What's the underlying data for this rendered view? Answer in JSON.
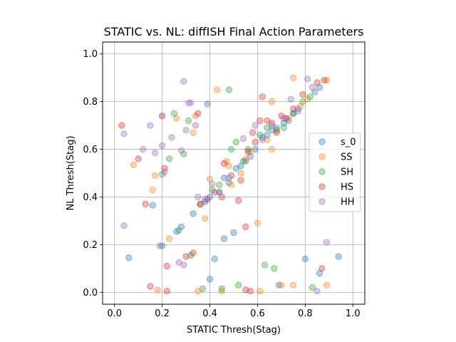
{
  "chart_data": {
    "type": "scatter",
    "title": "STATIC vs. NL: diffISH Final Action Parameters",
    "xlabel": "STATIC Thresh(Stag)",
    "ylabel": "NL Thresh(Stag)",
    "xlim": [
      -0.05,
      1.05
    ],
    "ylim": [
      -0.05,
      1.05
    ],
    "xticks": [
      "0.0",
      "0.2",
      "0.4",
      "0.6",
      "0.8",
      "1.0"
    ],
    "yticks": [
      "0.0",
      "0.2",
      "0.4",
      "0.6",
      "0.8",
      "1.0"
    ],
    "grid": true,
    "legend_position": "center-right",
    "series": [
      {
        "name": "s_0",
        "color": "#1f77b4",
        "points": [
          [
            0.06,
            0.145
          ],
          [
            0.16,
            0.365
          ],
          [
            0.2,
            0.195
          ],
          [
            0.26,
            0.255
          ],
          [
            0.28,
            0.275
          ],
          [
            0.33,
            0.33
          ],
          [
            0.38,
            0.38
          ],
          [
            0.39,
            0.79
          ],
          [
            0.4,
            0.4
          ],
          [
            0.4,
            0.055
          ],
          [
            0.42,
            0.14
          ],
          [
            0.44,
            0.42
          ],
          [
            0.46,
            0.48
          ],
          [
            0.46,
            0.225
          ],
          [
            0.48,
            0.46
          ],
          [
            0.5,
            0.25
          ],
          [
            0.51,
            0.52
          ],
          [
            0.53,
            0.53
          ],
          [
            0.55,
            0.55
          ],
          [
            0.57,
            0.57
          ],
          [
            0.59,
            0.6
          ],
          [
            0.62,
            0.65
          ],
          [
            0.64,
            0.66
          ],
          [
            0.66,
            0.68
          ],
          [
            0.68,
            0.69
          ],
          [
            0.69,
            0.03
          ],
          [
            0.71,
            0.71
          ],
          [
            0.73,
            0.72
          ],
          [
            0.75,
            0.75
          ],
          [
            0.77,
            0.77
          ],
          [
            0.8,
            0.14
          ],
          [
            0.84,
            0.84
          ],
          [
            0.86,
            0.08
          ],
          [
            0.86,
            0.86
          ],
          [
            0.94,
            0.15
          ]
        ]
      },
      {
        "name": "SS",
        "color": "#ff7f0e",
        "points": [
          [
            0.08,
            0.535
          ],
          [
            0.16,
            0.43
          ],
          [
            0.17,
            0.49
          ],
          [
            0.18,
            0.01
          ],
          [
            0.2,
            0.74
          ],
          [
            0.23,
            0.225
          ],
          [
            0.26,
            0.73
          ],
          [
            0.33,
            0.67
          ],
          [
            0.34,
            0.74
          ],
          [
            0.35,
            0.005
          ],
          [
            0.38,
            0.31
          ],
          [
            0.4,
            0.475
          ],
          [
            0.43,
            0.85
          ],
          [
            0.45,
            0.005
          ],
          [
            0.47,
            0.55
          ],
          [
            0.48,
            0.53
          ],
          [
            0.49,
            0.45
          ],
          [
            0.53,
            0.5
          ],
          [
            0.55,
            0.56
          ],
          [
            0.57,
            0.59
          ],
          [
            0.6,
            0.29
          ],
          [
            0.61,
            0.005
          ],
          [
            0.64,
            0.64
          ],
          [
            0.66,
            0.6
          ],
          [
            0.66,
            0.8
          ],
          [
            0.7,
            0.03
          ],
          [
            0.73,
            0.73
          ],
          [
            0.75,
            0.9
          ],
          [
            0.75,
            0.03
          ],
          [
            0.78,
            0.78
          ],
          [
            0.81,
            0.81
          ],
          [
            0.89,
            0.03
          ],
          [
            0.89,
            0.89
          ]
        ]
      },
      {
        "name": "SH",
        "color": "#2ca02c",
        "points": [
          [
            0.2,
            0.495
          ],
          [
            0.23,
            0.56
          ],
          [
            0.25,
            0.75
          ],
          [
            0.27,
            0.26
          ],
          [
            0.29,
            0.58
          ],
          [
            0.31,
            0.72
          ],
          [
            0.32,
            0.155
          ],
          [
            0.36,
            0.37
          ],
          [
            0.37,
            0.015
          ],
          [
            0.41,
            0.43
          ],
          [
            0.44,
            0.45
          ],
          [
            0.45,
            0.015
          ],
          [
            0.48,
            0.85
          ],
          [
            0.49,
            0.6
          ],
          [
            0.51,
            0.63
          ],
          [
            0.52,
            0.03
          ],
          [
            0.54,
            0.55
          ],
          [
            0.56,
            0.6
          ],
          [
            0.61,
            0.66
          ],
          [
            0.63,
            0.115
          ],
          [
            0.64,
            0.69
          ],
          [
            0.67,
            0.1
          ],
          [
            0.68,
            0.68
          ],
          [
            0.71,
            0.69
          ],
          [
            0.75,
            0.75
          ],
          [
            0.79,
            0.8
          ],
          [
            0.82,
            0.82
          ],
          [
            0.83,
            0.02
          ]
        ]
      },
      {
        "name": "HS",
        "color": "#d62728",
        "points": [
          [
            0.03,
            0.7
          ],
          [
            0.1,
            0.56
          ],
          [
            0.13,
            0.37
          ],
          [
            0.15,
            0.025
          ],
          [
            0.21,
            0.52
          ],
          [
            0.22,
            0.005
          ],
          [
            0.22,
            0.11
          ],
          [
            0.3,
            0.15
          ],
          [
            0.33,
            0.165
          ],
          [
            0.35,
            0.75
          ],
          [
            0.36,
            0.37
          ],
          [
            0.39,
            0.39
          ],
          [
            0.42,
            0.42
          ],
          [
            0.45,
            0.4
          ],
          [
            0.46,
            0.54
          ],
          [
            0.49,
            0.49
          ],
          [
            0.52,
            0.385
          ],
          [
            0.53,
            0.47
          ],
          [
            0.55,
            0.01
          ],
          [
            0.55,
            0.275
          ],
          [
            0.56,
            0.59
          ],
          [
            0.57,
            0.005
          ],
          [
            0.58,
            0.67
          ],
          [
            0.59,
            0.63
          ],
          [
            0.61,
            0.72
          ],
          [
            0.62,
            0.82
          ],
          [
            0.64,
            0.72
          ],
          [
            0.66,
            0.71
          ],
          [
            0.68,
            0.67
          ],
          [
            0.7,
            0.74
          ],
          [
            0.72,
            0.73
          ],
          [
            0.75,
            0.77
          ],
          [
            0.79,
            0.83
          ],
          [
            0.85,
            0.88
          ],
          [
            0.87,
            0.1
          ],
          [
            0.88,
            0.89
          ]
        ]
      },
      {
        "name": "HH",
        "color": "#9467bd",
        "points": [
          [
            0.04,
            0.28
          ],
          [
            0.04,
            0.665
          ],
          [
            0.12,
            0.6
          ],
          [
            0.15,
            0.7
          ],
          [
            0.17,
            0.585
          ],
          [
            0.19,
            0.195
          ],
          [
            0.2,
            0.74
          ],
          [
            0.2,
            0.615
          ],
          [
            0.21,
            0.505
          ],
          [
            0.24,
            0.65
          ],
          [
            0.27,
            0.125
          ],
          [
            0.28,
            0.595
          ],
          [
            0.29,
            0.885
          ],
          [
            0.29,
            0.115
          ],
          [
            0.3,
            0.68
          ],
          [
            0.31,
            0.795
          ],
          [
            0.32,
            0.795
          ],
          [
            0.34,
            0.7
          ],
          [
            0.35,
            0.4
          ],
          [
            0.38,
            0.39
          ],
          [
            0.41,
            0.455
          ],
          [
            0.44,
            0.42
          ],
          [
            0.48,
            0.48
          ],
          [
            0.54,
            0.645
          ],
          [
            0.59,
            0.7
          ],
          [
            0.62,
            0.64
          ],
          [
            0.66,
            0.7
          ],
          [
            0.71,
            0.73
          ],
          [
            0.74,
            0.81
          ],
          [
            0.77,
            0.76
          ],
          [
            0.81,
            0.895
          ],
          [
            0.83,
            0.86
          ],
          [
            0.85,
            0.005
          ],
          [
            0.89,
            0.21
          ]
        ]
      }
    ]
  }
}
